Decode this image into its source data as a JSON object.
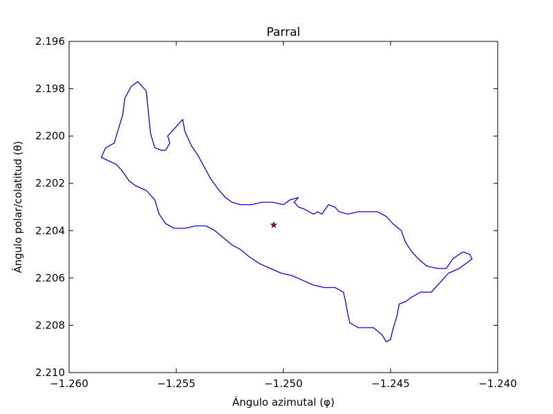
{
  "chart_data": {
    "type": "line",
    "title": "Parral",
    "xlabel": "Ángulo azimutal (φ)",
    "ylabel": "Ángulo polar/colatitud (θ)",
    "xlim": [
      -1.26,
      -1.24
    ],
    "ylim": [
      2.196,
      2.21
    ],
    "y_inverted": true,
    "grid": false,
    "x_ticks": [
      -1.26,
      -1.255,
      -1.25,
      -1.245,
      -1.24
    ],
    "x_tick_labels": [
      "−1.260",
      "−1.255",
      "−1.250",
      "−1.245",
      "−1.240"
    ],
    "y_ticks": [
      2.196,
      2.198,
      2.2,
      2.202,
      2.204,
      2.206,
      2.208,
      2.21
    ],
    "y_tick_labels": [
      "2.196",
      "2.198",
      "2.200",
      "2.202",
      "2.204",
      "2.206",
      "2.208",
      "2.210"
    ],
    "series": [
      {
        "type": "line",
        "color": "#0000ff",
        "points": [
          [
            -1.2571,
            2.1979
          ],
          [
            -1.2568,
            2.1977
          ],
          [
            -1.2564,
            2.1981
          ],
          [
            -1.2563,
            2.199
          ],
          [
            -1.2562,
            2.1999
          ],
          [
            -1.256,
            2.2005
          ],
          [
            -1.2557,
            2.2006
          ],
          [
            -1.2555,
            2.2006
          ],
          [
            -1.2553,
            2.2003
          ],
          [
            -1.2554,
            2.2
          ],
          [
            -1.2547,
            2.1993
          ],
          [
            -1.2546,
            2.1998
          ],
          [
            -1.2543,
            2.2004
          ],
          [
            -1.254,
            2.2008
          ],
          [
            -1.2537,
            2.2013
          ],
          [
            -1.2534,
            2.2018
          ],
          [
            -1.253,
            2.2023
          ],
          [
            -1.2527,
            2.2026
          ],
          [
            -1.2524,
            2.2028
          ],
          [
            -1.252,
            2.2029
          ],
          [
            -1.2515,
            2.2029
          ],
          [
            -1.251,
            2.2028
          ],
          [
            -1.2505,
            2.2028
          ],
          [
            -1.25,
            2.2029
          ],
          [
            -1.2497,
            2.2027
          ],
          [
            -1.2493,
            2.2026
          ],
          [
            -1.2495,
            2.2028
          ],
          [
            -1.2493,
            2.203
          ],
          [
            -1.249,
            2.2031
          ],
          [
            -1.2486,
            2.2033
          ],
          [
            -1.2484,
            2.2032
          ],
          [
            -1.2482,
            2.2033
          ],
          [
            -1.2479,
            2.2029
          ],
          [
            -1.2476,
            2.203
          ],
          [
            -1.2474,
            2.2032
          ],
          [
            -1.247,
            2.2033
          ],
          [
            -1.2465,
            2.2032
          ],
          [
            -1.2461,
            2.2032
          ],
          [
            -1.2456,
            2.2032
          ],
          [
            -1.2452,
            2.2034
          ],
          [
            -1.2449,
            2.2037
          ],
          [
            -1.2445,
            2.204
          ],
          [
            -1.2443,
            2.2045
          ],
          [
            -1.244,
            2.2049
          ],
          [
            -1.2437,
            2.2052
          ],
          [
            -1.2433,
            2.2055
          ],
          [
            -1.2428,
            2.2056
          ],
          [
            -1.2424,
            2.2056
          ],
          [
            -1.2421,
            2.2052
          ],
          [
            -1.2418,
            2.205
          ],
          [
            -1.2416,
            2.2049
          ],
          [
            -1.2413,
            2.205
          ],
          [
            -1.2412,
            2.2052
          ],
          [
            -1.2418,
            2.2056
          ],
          [
            -1.2423,
            2.2058
          ],
          [
            -1.2425,
            2.206
          ],
          [
            -1.2428,
            2.2063
          ],
          [
            -1.2431,
            2.2066
          ],
          [
            -1.2436,
            2.2066
          ],
          [
            -1.244,
            2.2068
          ],
          [
            -1.2443,
            2.207
          ],
          [
            -1.2446,
            2.2071
          ],
          [
            -1.2447,
            2.2076
          ],
          [
            -1.2449,
            2.2082
          ],
          [
            -1.245,
            2.2086
          ],
          [
            -1.2452,
            2.2087
          ],
          [
            -1.2454,
            2.2084
          ],
          [
            -1.2458,
            2.2081
          ],
          [
            -1.2465,
            2.2081
          ],
          [
            -1.2469,
            2.2079
          ],
          [
            -1.247,
            2.2075
          ],
          [
            -1.2471,
            2.207
          ],
          [
            -1.2472,
            2.2066
          ],
          [
            -1.2476,
            2.2064
          ],
          [
            -1.2481,
            2.2064
          ],
          [
            -1.2486,
            2.2063
          ],
          [
            -1.2491,
            2.2061
          ],
          [
            -1.2496,
            2.2059
          ],
          [
            -1.2501,
            2.2058
          ],
          [
            -1.2506,
            2.2056
          ],
          [
            -1.2511,
            2.2054
          ],
          [
            -1.2516,
            2.2051
          ],
          [
            -1.252,
            2.2048
          ],
          [
            -1.2524,
            2.2046
          ],
          [
            -1.2528,
            2.2043
          ],
          [
            -1.2532,
            2.204
          ],
          [
            -1.2536,
            2.2038
          ],
          [
            -1.2541,
            2.2038
          ],
          [
            -1.2546,
            2.2039
          ],
          [
            -1.2551,
            2.2039
          ],
          [
            -1.2555,
            2.2037
          ],
          [
            -1.2558,
            2.2033
          ],
          [
            -1.256,
            2.2027
          ],
          [
            -1.2564,
            2.2023
          ],
          [
            -1.2569,
            2.2021
          ],
          [
            -1.2572,
            2.2019
          ],
          [
            -1.2575,
            2.2015
          ],
          [
            -1.2578,
            2.2012
          ],
          [
            -1.2585,
            2.2009
          ],
          [
            -1.2583,
            2.2005
          ],
          [
            -1.2581,
            2.2004
          ],
          [
            -1.2579,
            2.2003
          ],
          [
            -1.2577,
            2.1997
          ],
          [
            -1.2575,
            2.1991
          ],
          [
            -1.2574,
            2.1984
          ],
          [
            -1.2571,
            2.1979
          ]
        ]
      },
      {
        "type": "scatter",
        "marker": "star",
        "color": "#c00000",
        "points": [
          [
            -1.25045,
            2.20376
          ]
        ]
      }
    ]
  }
}
